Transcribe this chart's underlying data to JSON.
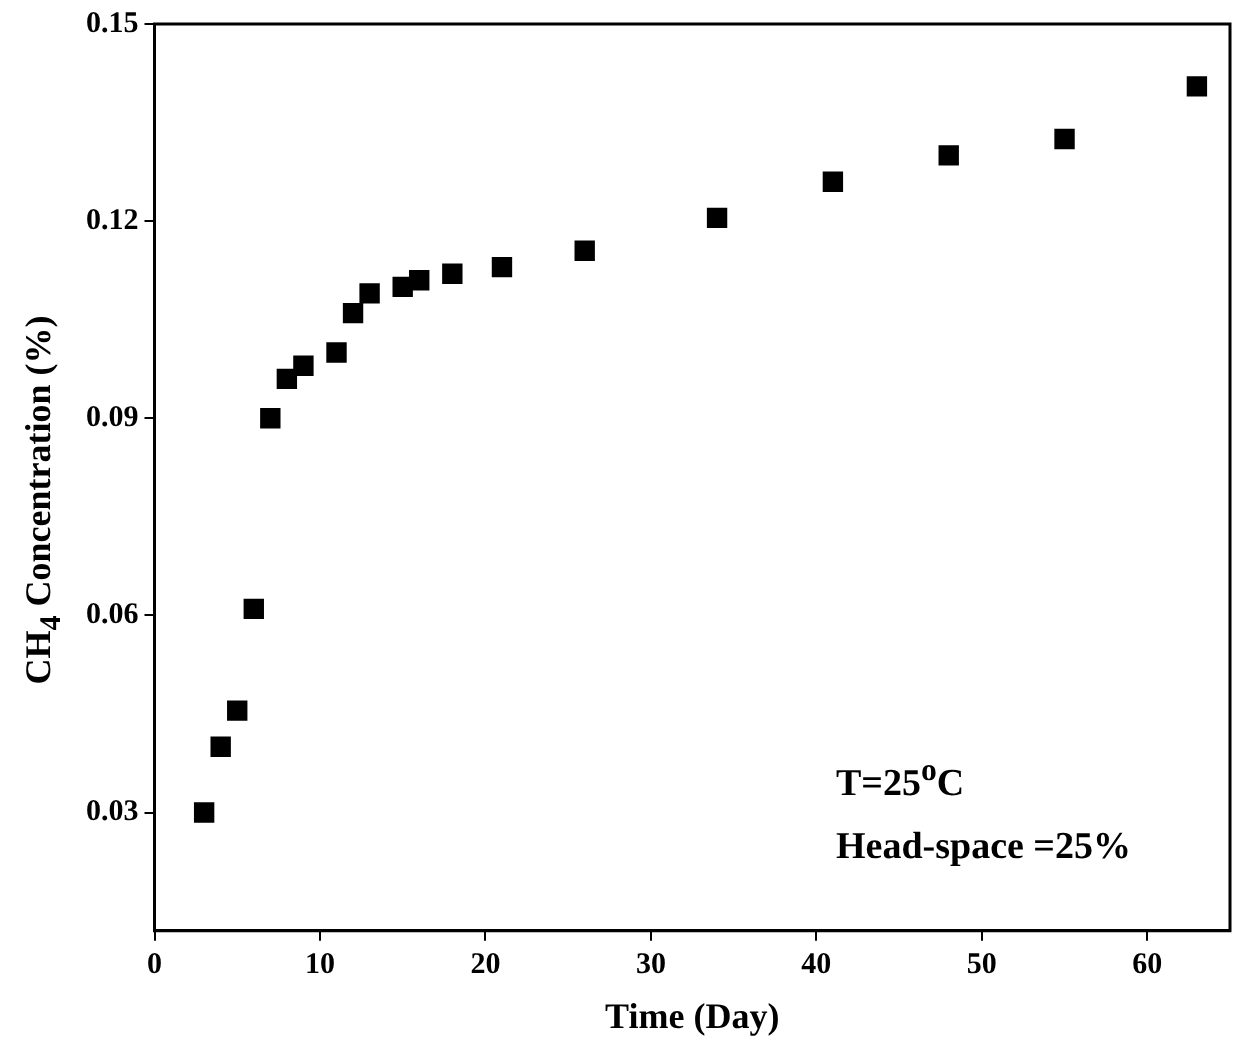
{
  "chart_data": {
    "type": "scatter",
    "xlabel": "Time (Day)",
    "ylabel": "CH$_{4}$ Concentration (%)",
    "x": [
      3,
      4,
      5,
      6,
      7,
      8,
      9,
      11,
      12,
      13,
      15,
      16,
      18,
      21,
      26,
      34,
      41,
      48,
      55,
      63
    ],
    "series": [
      {
        "color": "#000000",
        "values": [
          0.03,
          0.04,
          0.0455,
          0.061,
          0.09,
          0.096,
          0.098,
          0.1,
          0.106,
          0.109,
          0.11,
          0.111,
          0.112,
          0.113,
          0.1155,
          0.1205,
          0.126,
          0.13,
          0.1325,
          0.1405
        ]
      }
    ],
    "xlim": [
      0,
      65
    ],
    "xticks": [
      0,
      10,
      20,
      30,
      40,
      50,
      60
    ],
    "ylim": [
      0.012,
      0.15
    ],
    "yticks": [
      0.03,
      0.06,
      0.09,
      0.12,
      0.15
    ],
    "marker": "square",
    "grid": false,
    "legend": false,
    "annotations": [
      "T=25$^{o}$C",
      "Head-space =25%"
    ]
  }
}
